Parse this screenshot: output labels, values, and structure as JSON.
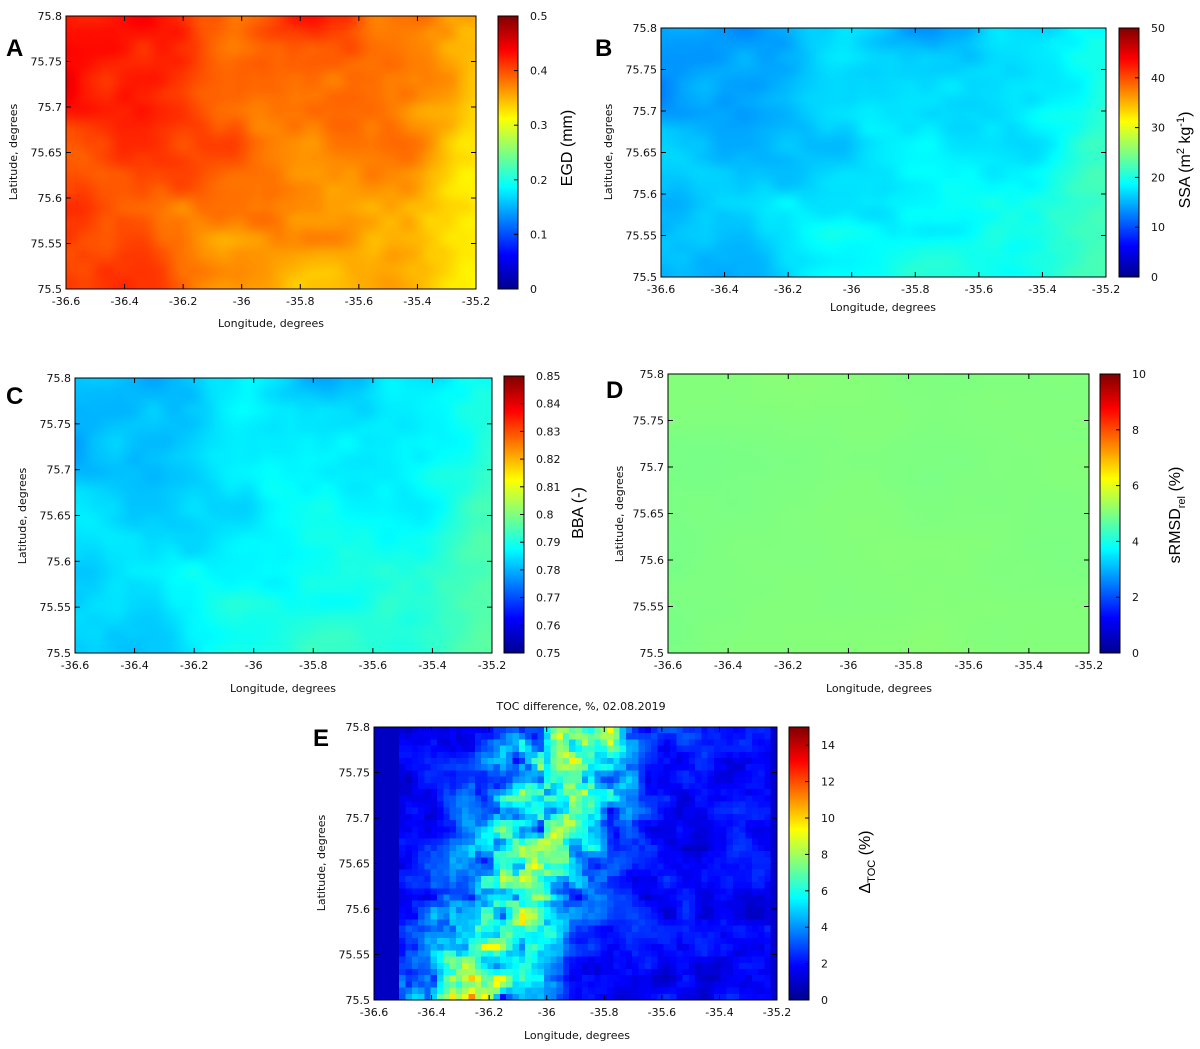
{
  "chart_data": [
    {
      "panel": "A",
      "type": "heatmap",
      "title": "",
      "xlabel": "Longitude, degrees",
      "ylabel": "Latitude, degrees",
      "xlim": [
        -36.6,
        -35.2
      ],
      "ylim": [
        75.5,
        75.8
      ],
      "xticks": [
        "-36.6",
        "-36.4",
        "-36.2",
        "-36",
        "-35.8",
        "-35.6",
        "-35.4",
        "-35.2"
      ],
      "yticks": [
        "75.5",
        "75.55",
        "75.6",
        "75.65",
        "75.7",
        "75.75",
        "75.8"
      ],
      "colorbar_label": "EGD (mm)",
      "colorbar_range": [
        0,
        0.5
      ],
      "colorbar_ticks": [
        "0",
        "0.1",
        "0.2",
        "0.3",
        "0.4",
        "0.5"
      ],
      "colormap": "jet",
      "field": {
        "mean": 0.36,
        "min": 0.29,
        "max": 0.42,
        "gradient": "higher (~0.41) in the west and north-west, lower (~0.3) in the south-east"
      }
    },
    {
      "panel": "B",
      "type": "heatmap",
      "title": "",
      "xlabel": "Longitude, degrees",
      "ylabel": "Latitude, degrees",
      "xlim": [
        -36.6,
        -35.2
      ],
      "ylim": [
        75.5,
        75.8
      ],
      "xticks": [
        "-36.6",
        "-36.4",
        "-36.2",
        "-36",
        "-35.8",
        "-35.6",
        "-35.4",
        "-35.2"
      ],
      "yticks": [
        "75.5",
        "75.55",
        "75.6",
        "75.65",
        "75.7",
        "75.75",
        "75.8"
      ],
      "colorbar_label": "SSA (m² kg⁻¹)",
      "colorbar_label_parts": [
        "SSA (m",
        "2",
        " kg",
        "-1",
        ")"
      ],
      "colorbar_range": [
        0,
        50
      ],
      "colorbar_ticks": [
        "0",
        "10",
        "20",
        "30",
        "40",
        "50"
      ],
      "colormap": "jet",
      "field": {
        "mean": 18,
        "min": 15,
        "max": 24,
        "gradient": "lower (~16) in the west, higher (~23) in the south-east"
      }
    },
    {
      "panel": "C",
      "type": "heatmap",
      "title": "",
      "xlabel": "Longitude, degrees",
      "ylabel": "Latitude, degrees",
      "xlim": [
        -36.6,
        -35.2
      ],
      "ylim": [
        75.5,
        75.8
      ],
      "xticks": [
        "-36.6",
        "-36.4",
        "-36.2",
        "-36",
        "-35.8",
        "-35.6",
        "-35.4",
        "-35.2"
      ],
      "yticks": [
        "75.5",
        "75.55",
        "75.6",
        "75.65",
        "75.7",
        "75.75",
        "75.8"
      ],
      "colorbar_label": "BBA (-)",
      "colorbar_range": [
        0.75,
        0.85
      ],
      "colorbar_ticks": [
        "0.75",
        "0.76",
        "0.77",
        "0.78",
        "0.79",
        "0.8",
        "0.81",
        "0.82",
        "0.83",
        "0.84",
        "0.85"
      ],
      "colormap": "jet",
      "field": {
        "mean": 0.787,
        "min": 0.782,
        "max": 0.801,
        "gradient": "lower (~0.783) in the west, higher (~0.80) in the south-east"
      }
    },
    {
      "panel": "D",
      "type": "heatmap",
      "title": "",
      "xlabel": "Longitude, degrees",
      "ylabel": "Latitude, degrees",
      "xlim": [
        -36.6,
        -35.2
      ],
      "ylim": [
        75.5,
        75.8
      ],
      "xticks": [
        "-36.6",
        "-36.4",
        "-36.2",
        "-36",
        "-35.8",
        "-35.6",
        "-35.4",
        "-35.2"
      ],
      "yticks": [
        "75.5",
        "75.55",
        "75.6",
        "75.65",
        "75.7",
        "75.75",
        "75.8"
      ],
      "colorbar_label": "sRMSDrel (%)",
      "colorbar_label_parts": [
        "sRMSD",
        "rel",
        " (%)"
      ],
      "colorbar_range": [
        0,
        10
      ],
      "colorbar_ticks": [
        "0",
        "2",
        "4",
        "6",
        "8",
        "10"
      ],
      "colormap": "jet",
      "field": {
        "mean": 5.0,
        "min": 4.8,
        "max": 5.2,
        "gradient": "nearly uniform (~5)"
      }
    },
    {
      "panel": "E",
      "type": "heatmap",
      "title": "TOC difference, %, 02.08.2019",
      "xlabel": "Longitude, degrees",
      "ylabel": "Latitude, degrees",
      "xlim": [
        -36.6,
        -35.2
      ],
      "ylim": [
        75.5,
        75.8
      ],
      "xticks": [
        "-36.6",
        "-36.4",
        "-36.2",
        "-36",
        "-35.8",
        "-35.6",
        "-35.4",
        "-35.2"
      ],
      "yticks": [
        "75.5",
        "75.55",
        "75.6",
        "75.65",
        "75.7",
        "75.75",
        "75.8"
      ],
      "colorbar_label": "ΔTOC (%)",
      "colorbar_label_parts": [
        "Δ",
        "TOC",
        " (%)"
      ],
      "colorbar_range": [
        0,
        15
      ],
      "colorbar_ticks": [
        "0",
        "2",
        "4",
        "6",
        "8",
        "10",
        "12",
        "14"
      ],
      "colormap": "jet",
      "field": {
        "mean": 2.5,
        "min": 0,
        "max": 10,
        "gradient": "mostly 1–3 %, a band of higher values (5–10 %) running from the top centre toward the lower left"
      }
    }
  ]
}
